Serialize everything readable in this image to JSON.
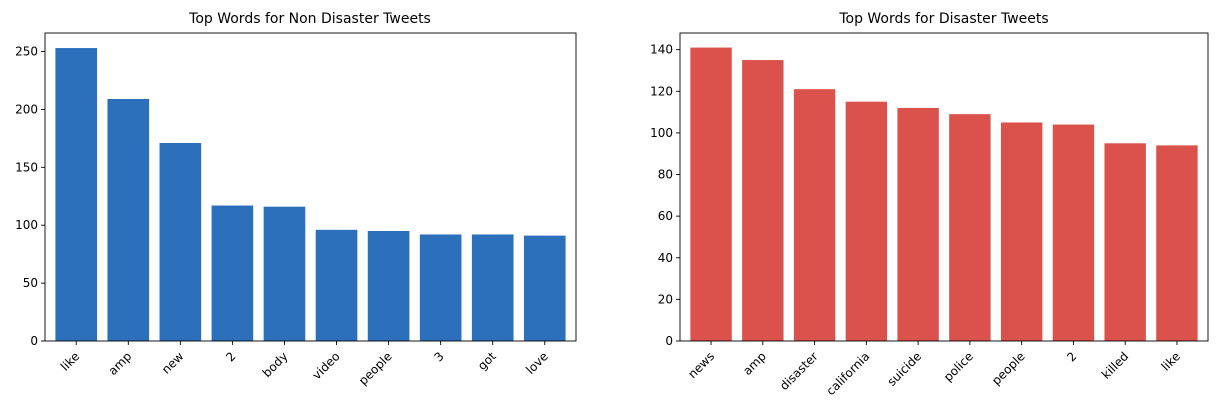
{
  "chart_data": [
    {
      "type": "bar",
      "title": "Top Words for Non Disaster Tweets",
      "xlabel": "",
      "ylabel": "",
      "categories": [
        "like",
        "amp",
        "new",
        "2",
        "body",
        "video",
        "people",
        "3",
        "got",
        "love"
      ],
      "values": [
        253,
        209,
        171,
        117,
        116,
        96,
        95,
        92,
        92,
        91
      ],
      "ylim": [
        0,
        266
      ],
      "yticks": [
        0,
        50,
        100,
        150,
        200,
        250
      ],
      "xtick_rotation": 45,
      "color": "#2c6fbb",
      "grid": false
    },
    {
      "type": "bar",
      "title": "Top Words for Disaster Tweets",
      "xlabel": "",
      "ylabel": "",
      "categories": [
        "news",
        "amp",
        "disaster",
        "california",
        "suicide",
        "police",
        "people",
        "2",
        "killed",
        "like"
      ],
      "values": [
        141,
        135,
        121,
        115,
        112,
        109,
        105,
        104,
        95,
        94
      ],
      "ylim": [
        0,
        148
      ],
      "yticks": [
        0,
        20,
        40,
        60,
        80,
        100,
        120,
        140
      ],
      "xtick_rotation": 45,
      "color": "#da524b",
      "grid": false
    }
  ]
}
